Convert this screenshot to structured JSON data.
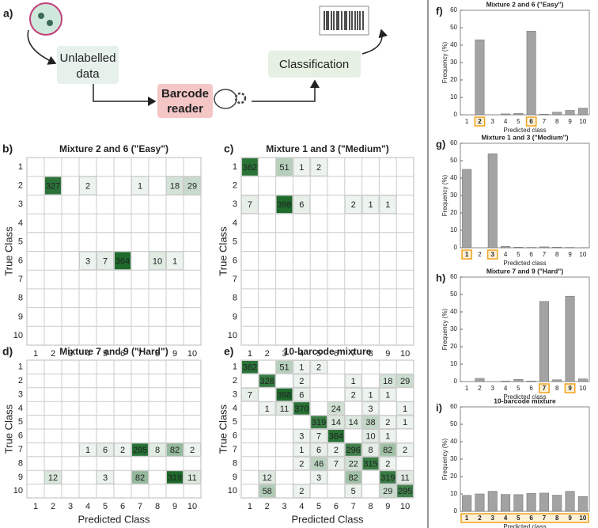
{
  "diagram": {
    "panel": "a)",
    "input": [
      "Unlabelled",
      "data"
    ],
    "reader": [
      "Barcode",
      "reader"
    ],
    "output": "Classification"
  },
  "chart_data": [
    {
      "type": "heatmap",
      "panel": "b)",
      "title": "Mixture 2 and 6 (\"Easy\")",
      "x_label": "Predicted Class",
      "y_label": "True Class",
      "color": "#1e6b2c",
      "categories": [
        "1",
        "2",
        "3",
        "4",
        "5",
        "6",
        "7",
        "8",
        "9",
        "10"
      ],
      "y_categories": [
        "1",
        "2",
        "3",
        "4",
        "5",
        "6",
        "7",
        "8",
        "9",
        "10"
      ],
      "values": [
        [
          null,
          null,
          null,
          null,
          null,
          null,
          null,
          null,
          null,
          null
        ],
        [
          null,
          327,
          null,
          2,
          null,
          null,
          1,
          null,
          18,
          29
        ],
        [
          null,
          null,
          null,
          null,
          null,
          null,
          null,
          null,
          null,
          null
        ],
        [
          null,
          null,
          null,
          null,
          null,
          null,
          null,
          null,
          null,
          null
        ],
        [
          null,
          null,
          null,
          null,
          null,
          null,
          null,
          null,
          null,
          null
        ],
        [
          null,
          null,
          null,
          3,
          7,
          364,
          null,
          10,
          1,
          null
        ],
        [
          null,
          null,
          null,
          null,
          null,
          null,
          null,
          null,
          null,
          null
        ],
        [
          null,
          null,
          null,
          null,
          null,
          null,
          null,
          null,
          null,
          null
        ],
        [
          null,
          null,
          null,
          null,
          null,
          null,
          null,
          null,
          null,
          null
        ],
        [
          null,
          null,
          null,
          null,
          null,
          null,
          null,
          null,
          null,
          null
        ]
      ]
    },
    {
      "type": "heatmap",
      "panel": "c)",
      "title": "Mixture 1 and 3 (\"Medium\")",
      "x_label": "Predicted Class",
      "y_label": "True Class",
      "color": "#1e6b2c",
      "categories": [
        "1",
        "2",
        "3",
        "4",
        "5",
        "6",
        "7",
        "8",
        "9",
        "10"
      ],
      "y_categories": [
        "1",
        "2",
        "3",
        "4",
        "5",
        "6",
        "7",
        "8",
        "9",
        "10"
      ],
      "values": [
        [
          362,
          null,
          51,
          1,
          2,
          null,
          null,
          null,
          null,
          null
        ],
        [
          null,
          null,
          null,
          null,
          null,
          null,
          null,
          null,
          null,
          null
        ],
        [
          7,
          null,
          398,
          6,
          null,
          null,
          2,
          1,
          1,
          null
        ],
        [
          null,
          null,
          null,
          null,
          null,
          null,
          null,
          null,
          null,
          null
        ],
        [
          null,
          null,
          null,
          null,
          null,
          null,
          null,
          null,
          null,
          null
        ],
        [
          null,
          null,
          null,
          null,
          null,
          null,
          null,
          null,
          null,
          null
        ],
        [
          null,
          null,
          null,
          null,
          null,
          null,
          null,
          null,
          null,
          null
        ],
        [
          null,
          null,
          null,
          null,
          null,
          null,
          null,
          null,
          null,
          null
        ],
        [
          null,
          null,
          null,
          null,
          null,
          null,
          null,
          null,
          null,
          null
        ],
        [
          null,
          null,
          null,
          null,
          null,
          null,
          null,
          null,
          null,
          null
        ]
      ]
    },
    {
      "type": "heatmap",
      "panel": "d)",
      "title": "Mixture 7 and 9 (\"Hard\")",
      "x_label": "Predicted Class",
      "y_label": "True Class",
      "color": "#1e6b2c",
      "categories": [
        "1",
        "2",
        "3",
        "4",
        "5",
        "6",
        "7",
        "8",
        "9",
        "10"
      ],
      "y_categories": [
        "1",
        "2",
        "3",
        "4",
        "5",
        "6",
        "7",
        "8",
        "9",
        "10"
      ],
      "values": [
        [
          null,
          null,
          null,
          null,
          null,
          null,
          null,
          null,
          null,
          null
        ],
        [
          null,
          null,
          null,
          null,
          null,
          null,
          null,
          null,
          null,
          null
        ],
        [
          null,
          null,
          null,
          null,
          null,
          null,
          null,
          null,
          null,
          null
        ],
        [
          null,
          null,
          null,
          null,
          null,
          null,
          null,
          null,
          null,
          null
        ],
        [
          null,
          null,
          null,
          null,
          null,
          null,
          null,
          null,
          null,
          null
        ],
        [
          null,
          null,
          null,
          null,
          null,
          null,
          null,
          null,
          null,
          null
        ],
        [
          null,
          null,
          null,
          1,
          6,
          2,
          295,
          8,
          82,
          2
        ],
        [
          null,
          null,
          null,
          null,
          null,
          null,
          null,
          null,
          null,
          null
        ],
        [
          null,
          12,
          null,
          null,
          3,
          null,
          82,
          null,
          319,
          11
        ],
        [
          null,
          null,
          null,
          null,
          null,
          null,
          null,
          null,
          null,
          null
        ]
      ]
    },
    {
      "type": "heatmap",
      "panel": "e)",
      "title": "10-barcode mixture",
      "x_label": "Predicted Class",
      "y_label": "True Class",
      "color": "#1e6b2c",
      "categories": [
        "1",
        "2",
        "3",
        "4",
        "5",
        "6",
        "7",
        "8",
        "9",
        "10"
      ],
      "y_categories": [
        "1",
        "2",
        "3",
        "4",
        "5",
        "6",
        "7",
        "8",
        "9",
        "10"
      ],
      "values": [
        [
          362,
          null,
          51,
          1,
          2,
          null,
          null,
          null,
          null,
          null
        ],
        [
          null,
          328,
          null,
          2,
          null,
          null,
          1,
          null,
          18,
          29
        ],
        [
          7,
          null,
          398,
          6,
          null,
          null,
          2,
          1,
          1,
          null
        ],
        [
          null,
          1,
          11,
          370,
          null,
          24,
          null,
          3,
          null,
          1
        ],
        [
          null,
          null,
          null,
          null,
          319,
          14,
          14,
          38,
          2,
          1
        ],
        [
          null,
          null,
          null,
          3,
          7,
          364,
          null,
          10,
          1,
          null
        ],
        [
          null,
          null,
          null,
          1,
          6,
          2,
          296,
          8,
          82,
          2
        ],
        [
          null,
          null,
          null,
          2,
          46,
          7,
          22,
          315,
          2,
          null
        ],
        [
          null,
          12,
          null,
          null,
          3,
          null,
          82,
          null,
          319,
          11
        ],
        [
          null,
          58,
          null,
          2,
          null,
          null,
          5,
          null,
          29,
          295
        ]
      ]
    },
    {
      "type": "bar",
      "panel": "f)",
      "title": "Mixture 2 and 6 (\"Easy\")",
      "x_label": "Predicted class",
      "y_label": "Frequency (%)",
      "color": "#a3a3a3",
      "highlighted": [
        1,
        5
      ],
      "highlight_color": "#f0a21e",
      "categories": [
        "1",
        "2",
        "3",
        "4",
        "5",
        "6",
        "7",
        "8",
        "9",
        "10"
      ],
      "values": [
        0,
        43,
        0,
        0.5,
        0.8,
        48,
        0.3,
        1.5,
        2.5,
        3.8
      ],
      "ylim": [
        0,
        60
      ],
      "yticks": [
        0,
        10,
        20,
        30,
        40,
        50,
        60
      ]
    },
    {
      "type": "bar",
      "panel": "g)",
      "title": "Mixture 1 and 3 (\"Medium\")",
      "x_label": "Predicted class",
      "y_label": "Frequency (%)",
      "color": "#a3a3a3",
      "highlighted": [
        0,
        2
      ],
      "highlight_color": "#f0a21e",
      "categories": [
        "1",
        "2",
        "3",
        "4",
        "5",
        "6",
        "7",
        "8",
        "9",
        "10"
      ],
      "values": [
        45,
        0,
        54,
        0.8,
        0.3,
        0.2,
        0.5,
        0.3,
        0.2,
        0.1
      ],
      "ylim": [
        0,
        60
      ],
      "yticks": [
        0,
        10,
        20,
        30,
        40,
        50,
        60
      ]
    },
    {
      "type": "bar",
      "panel": "h)",
      "title": "Mixture 7 and 9 (\"Hard\")",
      "x_label": "Predicted class",
      "y_label": "Frequency (%)",
      "color": "#a3a3a3",
      "highlighted": [
        6,
        8
      ],
      "highlight_color": "#f0a21e",
      "categories": [
        "1",
        "2",
        "3",
        "4",
        "5",
        "6",
        "7",
        "8",
        "9",
        "10"
      ],
      "values": [
        0,
        1.8,
        0,
        0.3,
        1.2,
        0.3,
        46,
        1,
        49,
        1.5
      ],
      "ylim": [
        0,
        60
      ],
      "yticks": [
        0,
        10,
        20,
        30,
        40,
        50,
        60
      ]
    },
    {
      "type": "bar",
      "panel": "i)",
      "title": "10-barcode mixture",
      "x_label": "Predicted class",
      "y_label": "Frequency (%)",
      "color": "#a3a3a3",
      "highlighted": [
        0,
        1,
        2,
        3,
        4,
        5,
        6,
        7,
        8,
        9
      ],
      "highlight_color": "#f0a21e",
      "categories": [
        "1",
        "2",
        "3",
        "4",
        "5",
        "6",
        "7",
        "8",
        "9",
        "10"
      ],
      "values": [
        9.2,
        10,
        11.5,
        9.7,
        9.6,
        10.3,
        10.5,
        9.3,
        11.5,
        8.5
      ],
      "ylim": [
        0,
        60
      ],
      "yticks": [
        0,
        10,
        20,
        30,
        40,
        50,
        60
      ]
    }
  ]
}
